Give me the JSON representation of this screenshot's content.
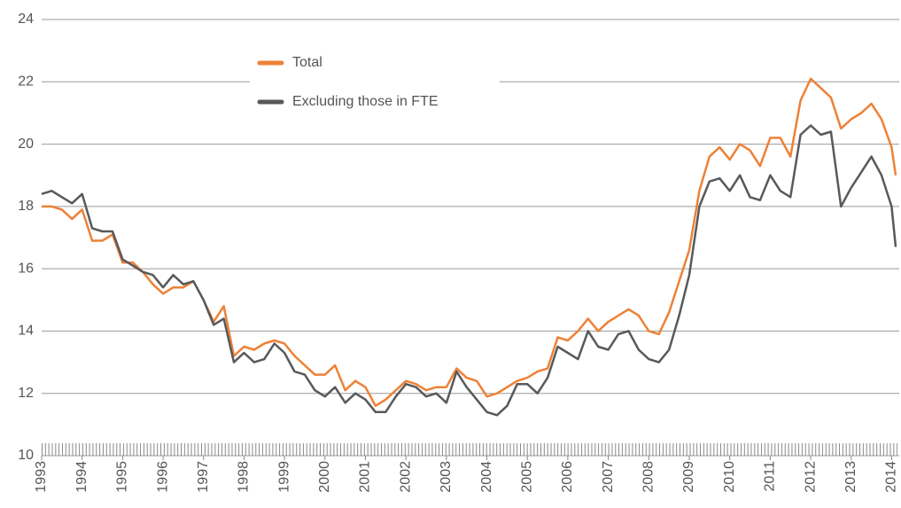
{
  "chart_data": {
    "type": "line",
    "x": [
      1993,
      1993.25,
      1993.5,
      1993.75,
      1994,
      1994.25,
      1994.5,
      1994.75,
      1995,
      1995.25,
      1995.5,
      1995.75,
      1996,
      1996.25,
      1996.5,
      1996.75,
      1997,
      1997.25,
      1997.5,
      1997.75,
      1998,
      1998.25,
      1998.5,
      1998.75,
      1999,
      1999.25,
      1999.5,
      1999.75,
      2000,
      2000.25,
      2000.5,
      2000.75,
      2001,
      2001.25,
      2001.5,
      2001.75,
      2002,
      2002.25,
      2002.5,
      2002.75,
      2003,
      2003.25,
      2003.5,
      2003.75,
      2004,
      2004.25,
      2004.5,
      2004.75,
      2005,
      2005.25,
      2005.5,
      2005.75,
      2006,
      2006.25,
      2006.5,
      2006.75,
      2007,
      2007.25,
      2007.5,
      2007.75,
      2008,
      2008.25,
      2008.5,
      2008.75,
      2009,
      2009.25,
      2009.5,
      2009.75,
      2010,
      2010.25,
      2010.5,
      2010.75,
      2011,
      2011.25,
      2011.5,
      2011.75,
      2012,
      2012.25,
      2012.5,
      2012.75,
      2013,
      2013.25,
      2013.5,
      2013.75,
      2014,
      2014.1
    ],
    "series": [
      {
        "name": "Total",
        "color": "#ee8136",
        "values": [
          18.0,
          18.0,
          17.9,
          17.6,
          17.9,
          16.9,
          16.9,
          17.1,
          16.2,
          16.2,
          15.9,
          15.5,
          15.2,
          15.4,
          15.4,
          15.6,
          15.0,
          14.3,
          14.8,
          13.2,
          13.5,
          13.4,
          13.6,
          13.7,
          13.6,
          13.2,
          12.9,
          12.6,
          12.6,
          12.9,
          12.1,
          12.4,
          12.2,
          11.6,
          11.8,
          12.1,
          12.4,
          12.3,
          12.1,
          12.2,
          12.2,
          12.8,
          12.5,
          12.4,
          11.9,
          12.0,
          12.2,
          12.4,
          12.5,
          12.7,
          12.8,
          13.8,
          13.7,
          14.0,
          14.4,
          14.0,
          14.3,
          14.5,
          14.7,
          14.5,
          14.0,
          13.9,
          14.6,
          15.6,
          16.6,
          18.5,
          19.6,
          19.9,
          19.5,
          20.0,
          19.8,
          19.3,
          20.2,
          20.2,
          19.6,
          21.4,
          22.1,
          21.8,
          21.5,
          20.5,
          20.8,
          21.0,
          21.3,
          20.8,
          19.9,
          19.0
        ]
      },
      {
        "name": "Excluding those in FTE",
        "color": "#58595b",
        "values": [
          18.4,
          18.5,
          18.3,
          18.1,
          18.4,
          17.3,
          17.2,
          17.2,
          16.3,
          16.1,
          15.9,
          15.8,
          15.4,
          15.8,
          15.5,
          15.6,
          15.0,
          14.2,
          14.4,
          13.0,
          13.3,
          13.0,
          13.1,
          13.6,
          13.3,
          12.7,
          12.6,
          12.1,
          11.9,
          12.2,
          11.7,
          12.0,
          11.8,
          11.4,
          11.4,
          11.9,
          12.3,
          12.2,
          11.9,
          12.0,
          11.7,
          12.7,
          12.2,
          11.8,
          11.4,
          11.3,
          11.6,
          12.3,
          12.3,
          12.0,
          12.5,
          13.5,
          13.3,
          13.1,
          14.0,
          13.5,
          13.4,
          13.9,
          14.0,
          13.4,
          13.1,
          13.0,
          13.4,
          14.5,
          15.8,
          18.0,
          18.8,
          18.9,
          18.5,
          19.0,
          18.3,
          18.2,
          19.0,
          18.5,
          18.3,
          20.3,
          20.6,
          20.3,
          20.4,
          18.0,
          18.6,
          19.1,
          19.6,
          19.0,
          18.0,
          16.7
        ]
      }
    ],
    "xlim": [
      1993,
      2014.1
    ],
    "xticks": [
      1993,
      1994,
      1995,
      1996,
      1997,
      1998,
      1999,
      2000,
      2001,
      2002,
      2003,
      2004,
      2005,
      2006,
      2007,
      2008,
      2009,
      2010,
      2011,
      2012,
      2013,
      2014
    ],
    "ylim": [
      10,
      24
    ],
    "yticks": [
      10,
      12,
      14,
      16,
      18,
      20,
      22,
      24
    ],
    "grid": true
  }
}
